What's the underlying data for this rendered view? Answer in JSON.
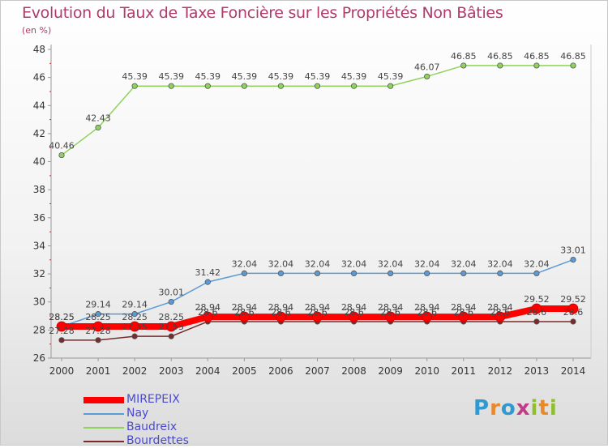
{
  "chart_data": {
    "type": "line",
    "title": "Evolution du Taux de Taxe Foncière sur les Propriétés Non Bâties",
    "subtitle": "(en %)",
    "xlabel": "",
    "ylabel": "(en %)",
    "categories": [
      "2000",
      "2001",
      "2002",
      "2003",
      "2004",
      "2005",
      "2006",
      "2007",
      "2008",
      "2009",
      "2010",
      "2011",
      "2012",
      "2013",
      "2014"
    ],
    "ylim": [
      26,
      48
    ],
    "yticks": [
      26,
      28,
      30,
      32,
      34,
      36,
      38,
      40,
      42,
      44,
      46,
      48
    ],
    "grid": false,
    "legend_position": "bottom-left",
    "series": [
      {
        "name": "MIREPEIX",
        "color": "#ff0000",
        "values": [
          28.25,
          28.25,
          28.25,
          28.25,
          28.94,
          28.94,
          28.94,
          28.94,
          28.94,
          28.94,
          28.94,
          28.94,
          28.94,
          29.52,
          29.52
        ],
        "labels": [
          "28.25",
          "28.25",
          "28.25",
          "28.25",
          "28.94",
          "28.94",
          "28.94",
          "28.94",
          "28.94",
          "28.94",
          "28.94",
          "28.94",
          "28.94",
          "29.52",
          "29.52"
        ]
      },
      {
        "name": "Nay",
        "color": "#5b9bd5",
        "values": [
          28.25,
          29.14,
          29.14,
          30.01,
          31.42,
          32.04,
          32.04,
          32.04,
          32.04,
          32.04,
          32.04,
          32.04,
          32.04,
          32.04,
          33.01
        ],
        "labels": [
          "28.25",
          "29.14",
          "29.14",
          "30.01",
          "31.42",
          "32.04",
          "32.04",
          "32.04",
          "32.04",
          "32.04",
          "32.04",
          "32.04",
          "32.04",
          "32.04",
          "33.01"
        ]
      },
      {
        "name": "Baudreix",
        "color": "#8fd35a",
        "values": [
          40.46,
          42.43,
          45.39,
          45.39,
          45.39,
          45.39,
          45.39,
          45.39,
          45.39,
          45.39,
          46.07,
          46.85,
          46.85,
          46.85,
          46.85
        ],
        "labels": [
          "40.46",
          "42.43",
          "45.39",
          "45.39",
          "45.39",
          "45.39",
          "45.39",
          "45.39",
          "45.39",
          "45.39",
          "46.07",
          "46.85",
          "46.85",
          "46.85",
          "46.85"
        ]
      },
      {
        "name": "Bourdettes",
        "color": "#7a2a2a",
        "values": [
          27.28,
          27.28,
          27.55,
          27.55,
          28.6,
          28.6,
          28.6,
          28.6,
          28.6,
          28.6,
          28.6,
          28.6,
          28.6,
          28.6,
          28.6
        ],
        "labels": [
          "27.28",
          "27.28",
          "27.55",
          "27.55",
          "28.6",
          "28.6",
          "28.6",
          "28.6",
          "28.6",
          "28.6",
          "28.6",
          "28.6",
          "28.6",
          "28.6",
          "28.6"
        ]
      }
    ]
  },
  "logo": {
    "letters": [
      "P",
      "r",
      "o",
      "x",
      "i",
      "t",
      "i"
    ],
    "colors": [
      "#2e9ad0",
      "#e8892c",
      "#2e9ad0",
      "#c23b86",
      "#8fbf2f",
      "#e8892c",
      "#8fbf2f"
    ]
  }
}
